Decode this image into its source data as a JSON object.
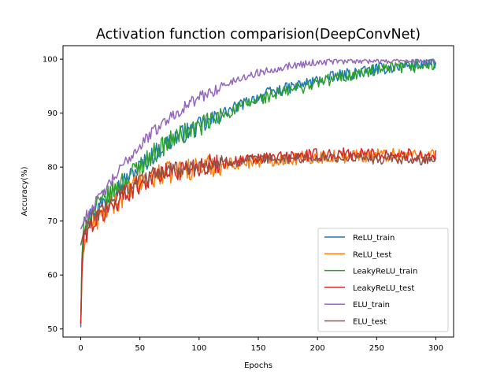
{
  "chart_data": {
    "type": "line",
    "title": "Activation function comparision(DeepConvNet)",
    "xlabel": "Epochs",
    "ylabel": "Accuracy(%)",
    "xlim": [
      -15,
      315
    ],
    "ylim": [
      48.5,
      102.5
    ],
    "xticks": [
      0,
      50,
      100,
      150,
      200,
      250,
      300
    ],
    "yticks": [
      50,
      60,
      70,
      80,
      90,
      100
    ],
    "grid": false,
    "legend_position": "lower right",
    "series": [
      {
        "name": "ReLU_train",
        "color": "#1f77b4",
        "x": [
          0,
          1,
          2,
          3,
          5,
          8,
          10,
          15,
          20,
          25,
          30,
          40,
          50,
          60,
          70,
          80,
          90,
          100,
          110,
          120,
          130,
          140,
          150,
          160,
          170,
          180,
          190,
          200,
          210,
          220,
          230,
          240,
          250,
          260,
          270,
          280,
          290,
          300
        ],
        "y": [
          50.3,
          62.5,
          67,
          68.5,
          70,
          71,
          71.5,
          72.5,
          73.8,
          75,
          76,
          78,
          80,
          82,
          84,
          85.5,
          86.5,
          87.5,
          88.5,
          90,
          91,
          92,
          93,
          93.8,
          94.3,
          94.9,
          95.5,
          96,
          96.5,
          97,
          97.4,
          97.8,
          98.1,
          98.4,
          98.7,
          98.9,
          99.1,
          99.3
        ],
        "noise": 1.1
      },
      {
        "name": "ReLU_test",
        "color": "#ff7f0e",
        "x": [
          0,
          1,
          2,
          3,
          5,
          8,
          10,
          15,
          20,
          25,
          30,
          40,
          50,
          60,
          70,
          80,
          90,
          100,
          120,
          140,
          160,
          180,
          200,
          220,
          240,
          260,
          280,
          300
        ],
        "y": [
          50.8,
          60,
          64,
          66.5,
          68,
          69,
          69.5,
          70.5,
          71.5,
          72.5,
          73.5,
          75.5,
          77,
          78,
          78.8,
          79.2,
          79.6,
          80,
          80.5,
          81,
          81.4,
          81.6,
          81.8,
          82,
          82.2,
          82.3,
          82.3,
          82.3
        ],
        "noise": 1.3
      },
      {
        "name": "LeakyReLU_train",
        "color": "#2ca02c",
        "x": [
          0,
          1,
          2,
          3,
          5,
          8,
          10,
          15,
          20,
          25,
          30,
          40,
          50,
          60,
          70,
          80,
          90,
          100,
          110,
          120,
          130,
          140,
          150,
          160,
          170,
          180,
          190,
          200,
          210,
          220,
          230,
          240,
          250,
          260,
          270,
          280,
          290,
          300
        ],
        "y": [
          50.9,
          63,
          67.5,
          69,
          70.5,
          71.5,
          72,
          73,
          74,
          75,
          76.2,
          78.3,
          80.3,
          82.2,
          84,
          85.5,
          86.5,
          87.5,
          88.5,
          89.6,
          90.6,
          91.6,
          92.5,
          93.2,
          93.8,
          94.4,
          95,
          95.6,
          96.2,
          96.7,
          97.1,
          97.5,
          97.8,
          98.1,
          98.4,
          98.6,
          98.8,
          99.1
        ],
        "noise": 1.2
      },
      {
        "name": "LeakyReLU_test",
        "color": "#d62728",
        "x": [
          0,
          1,
          2,
          3,
          5,
          8,
          10,
          15,
          20,
          25,
          30,
          40,
          50,
          60,
          70,
          80,
          90,
          100,
          120,
          140,
          160,
          180,
          200,
          220,
          240,
          260,
          280,
          300
        ],
        "y": [
          51,
          60.5,
          64.5,
          66.5,
          68,
          69,
          69.5,
          70.5,
          71.5,
          72.5,
          73.5,
          75.5,
          77,
          78,
          78.8,
          79.3,
          79.8,
          80.2,
          80.8,
          81.3,
          81.7,
          82,
          82.2,
          82.4,
          82.5,
          82.4,
          82.2,
          82
        ],
        "noise": 1.2
      },
      {
        "name": "ELU_train",
        "color": "#9467bd",
        "x": [
          0,
          1,
          2,
          3,
          5,
          8,
          10,
          15,
          20,
          25,
          30,
          40,
          50,
          60,
          70,
          80,
          90,
          100,
          110,
          120,
          130,
          140,
          150,
          160,
          170,
          180,
          190,
          200,
          210,
          220,
          230,
          240,
          250,
          260,
          270,
          280,
          290,
          300
        ],
        "y": [
          68.5,
          69,
          69.5,
          70,
          71,
          72,
          72.8,
          74,
          75.5,
          77,
          78.5,
          81.5,
          84,
          86.3,
          88.3,
          90,
          91.5,
          92.8,
          94,
          95,
          96,
          96.8,
          97.5,
          98,
          98.5,
          98.9,
          99.2,
          99.4,
          99.6,
          99.7,
          99.8,
          99.85,
          99.9,
          99.9,
          99.9,
          99.9,
          99.9,
          99.9
        ],
        "noise": 0.7
      },
      {
        "name": "ELU_test",
        "color": "#8c564b",
        "x": [
          0,
          1,
          2,
          3,
          5,
          8,
          10,
          15,
          20,
          25,
          30,
          40,
          50,
          60,
          70,
          80,
          90,
          100,
          120,
          140,
          160,
          180,
          200,
          220,
          240,
          260,
          280,
          300
        ],
        "y": [
          65.5,
          66.5,
          67.5,
          68,
          69,
          70,
          70.5,
          71.5,
          72.5,
          73.5,
          74.5,
          76.3,
          77.6,
          78.5,
          79.1,
          79.6,
          80,
          80.3,
          80.8,
          81.2,
          81.4,
          81.6,
          81.7,
          81.7,
          81.5,
          81.3,
          81.2,
          81.5
        ],
        "noise": 0.9
      }
    ]
  }
}
